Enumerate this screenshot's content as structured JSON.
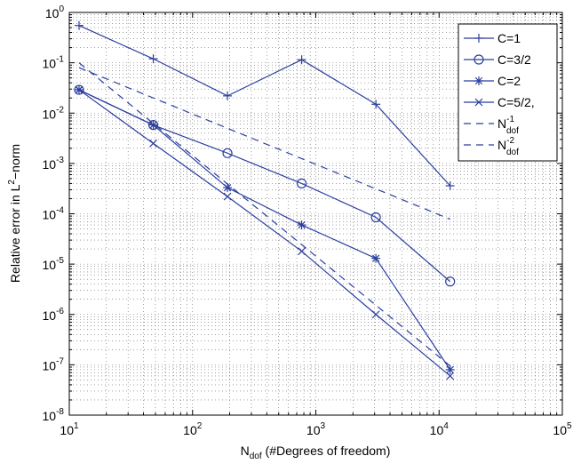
{
  "chart_data": {
    "type": "line",
    "title": "",
    "xlabel": {
      "main": "N",
      "sub": "dof",
      "rest": " (#Degrees of freedom)"
    },
    "ylabel": {
      "main": "Relative error in L",
      "sup": "2",
      "rest": "−norm"
    },
    "xscale": "log",
    "yscale": "log",
    "xlim": [
      10,
      100000
    ],
    "ylim": [
      1e-08,
      1
    ],
    "grid": "on (major and minor, dotted)",
    "legend_position": "top-right",
    "xticks": [
      {
        "base": "10",
        "exp": "1"
      },
      {
        "base": "10",
        "exp": "2"
      },
      {
        "base": "10",
        "exp": "3"
      },
      {
        "base": "10",
        "exp": "4"
      },
      {
        "base": "10",
        "exp": "5"
      }
    ],
    "yticks": [
      {
        "base": "10",
        "exp": "0"
      },
      {
        "base": "10",
        "exp": "-1"
      },
      {
        "base": "10",
        "exp": "-2"
      },
      {
        "base": "10",
        "exp": "-3"
      },
      {
        "base": "10",
        "exp": "-4"
      },
      {
        "base": "10",
        "exp": "-5"
      },
      {
        "base": "10",
        "exp": "-6"
      },
      {
        "base": "10",
        "exp": "-7"
      },
      {
        "base": "10",
        "exp": "-8"
      }
    ],
    "series": [
      {
        "name": "C=1",
        "marker": "plus",
        "line": "solid",
        "color": "#2b3f9e",
        "x": [
          12,
          48,
          192,
          768,
          3072,
          12288
        ],
        "y": [
          0.55,
          0.12,
          0.022,
          0.115,
          0.015,
          0.00036
        ]
      },
      {
        "name": "C=3/2",
        "marker": "circle",
        "line": "solid",
        "color": "#2b3f9e",
        "x": [
          12,
          48,
          192,
          768,
          3072,
          12288
        ],
        "y": [
          0.029,
          0.0058,
          0.0016,
          0.0004,
          8.5e-05,
          4.5e-06
        ]
      },
      {
        "name": "C=2",
        "marker": "star",
        "line": "solid",
        "color": "#2b3f9e",
        "x": [
          12,
          48,
          192,
          768,
          3072,
          12288
        ],
        "y": [
          0.029,
          0.0058,
          0.00033,
          6e-05,
          1.3e-05,
          8e-08
        ]
      },
      {
        "name": "C=5/2,",
        "marker": "x",
        "line": "solid",
        "color": "#2b3f9e",
        "x": [
          12,
          48,
          192,
          768,
          3072,
          12288
        ],
        "y": [
          0.029,
          0.0025,
          0.00022,
          1.8e-05,
          1e-06,
          6e-08
        ]
      },
      {
        "name": {
          "main": "N",
          "sub": "dof",
          "sup": "-1"
        },
        "marker": "none",
        "line": "dashed",
        "color": "#2b3f9e",
        "x": [
          12,
          12288
        ],
        "y": [
          0.08,
          7.8e-05
        ]
      },
      {
        "name": {
          "main": "N",
          "sub": "dof",
          "sup": "-2"
        },
        "marker": "none",
        "line": "dashed",
        "color": "#2b3f9e",
        "x": [
          12,
          12288
        ],
        "y": [
          0.1,
          9.53e-08
        ]
      }
    ]
  }
}
